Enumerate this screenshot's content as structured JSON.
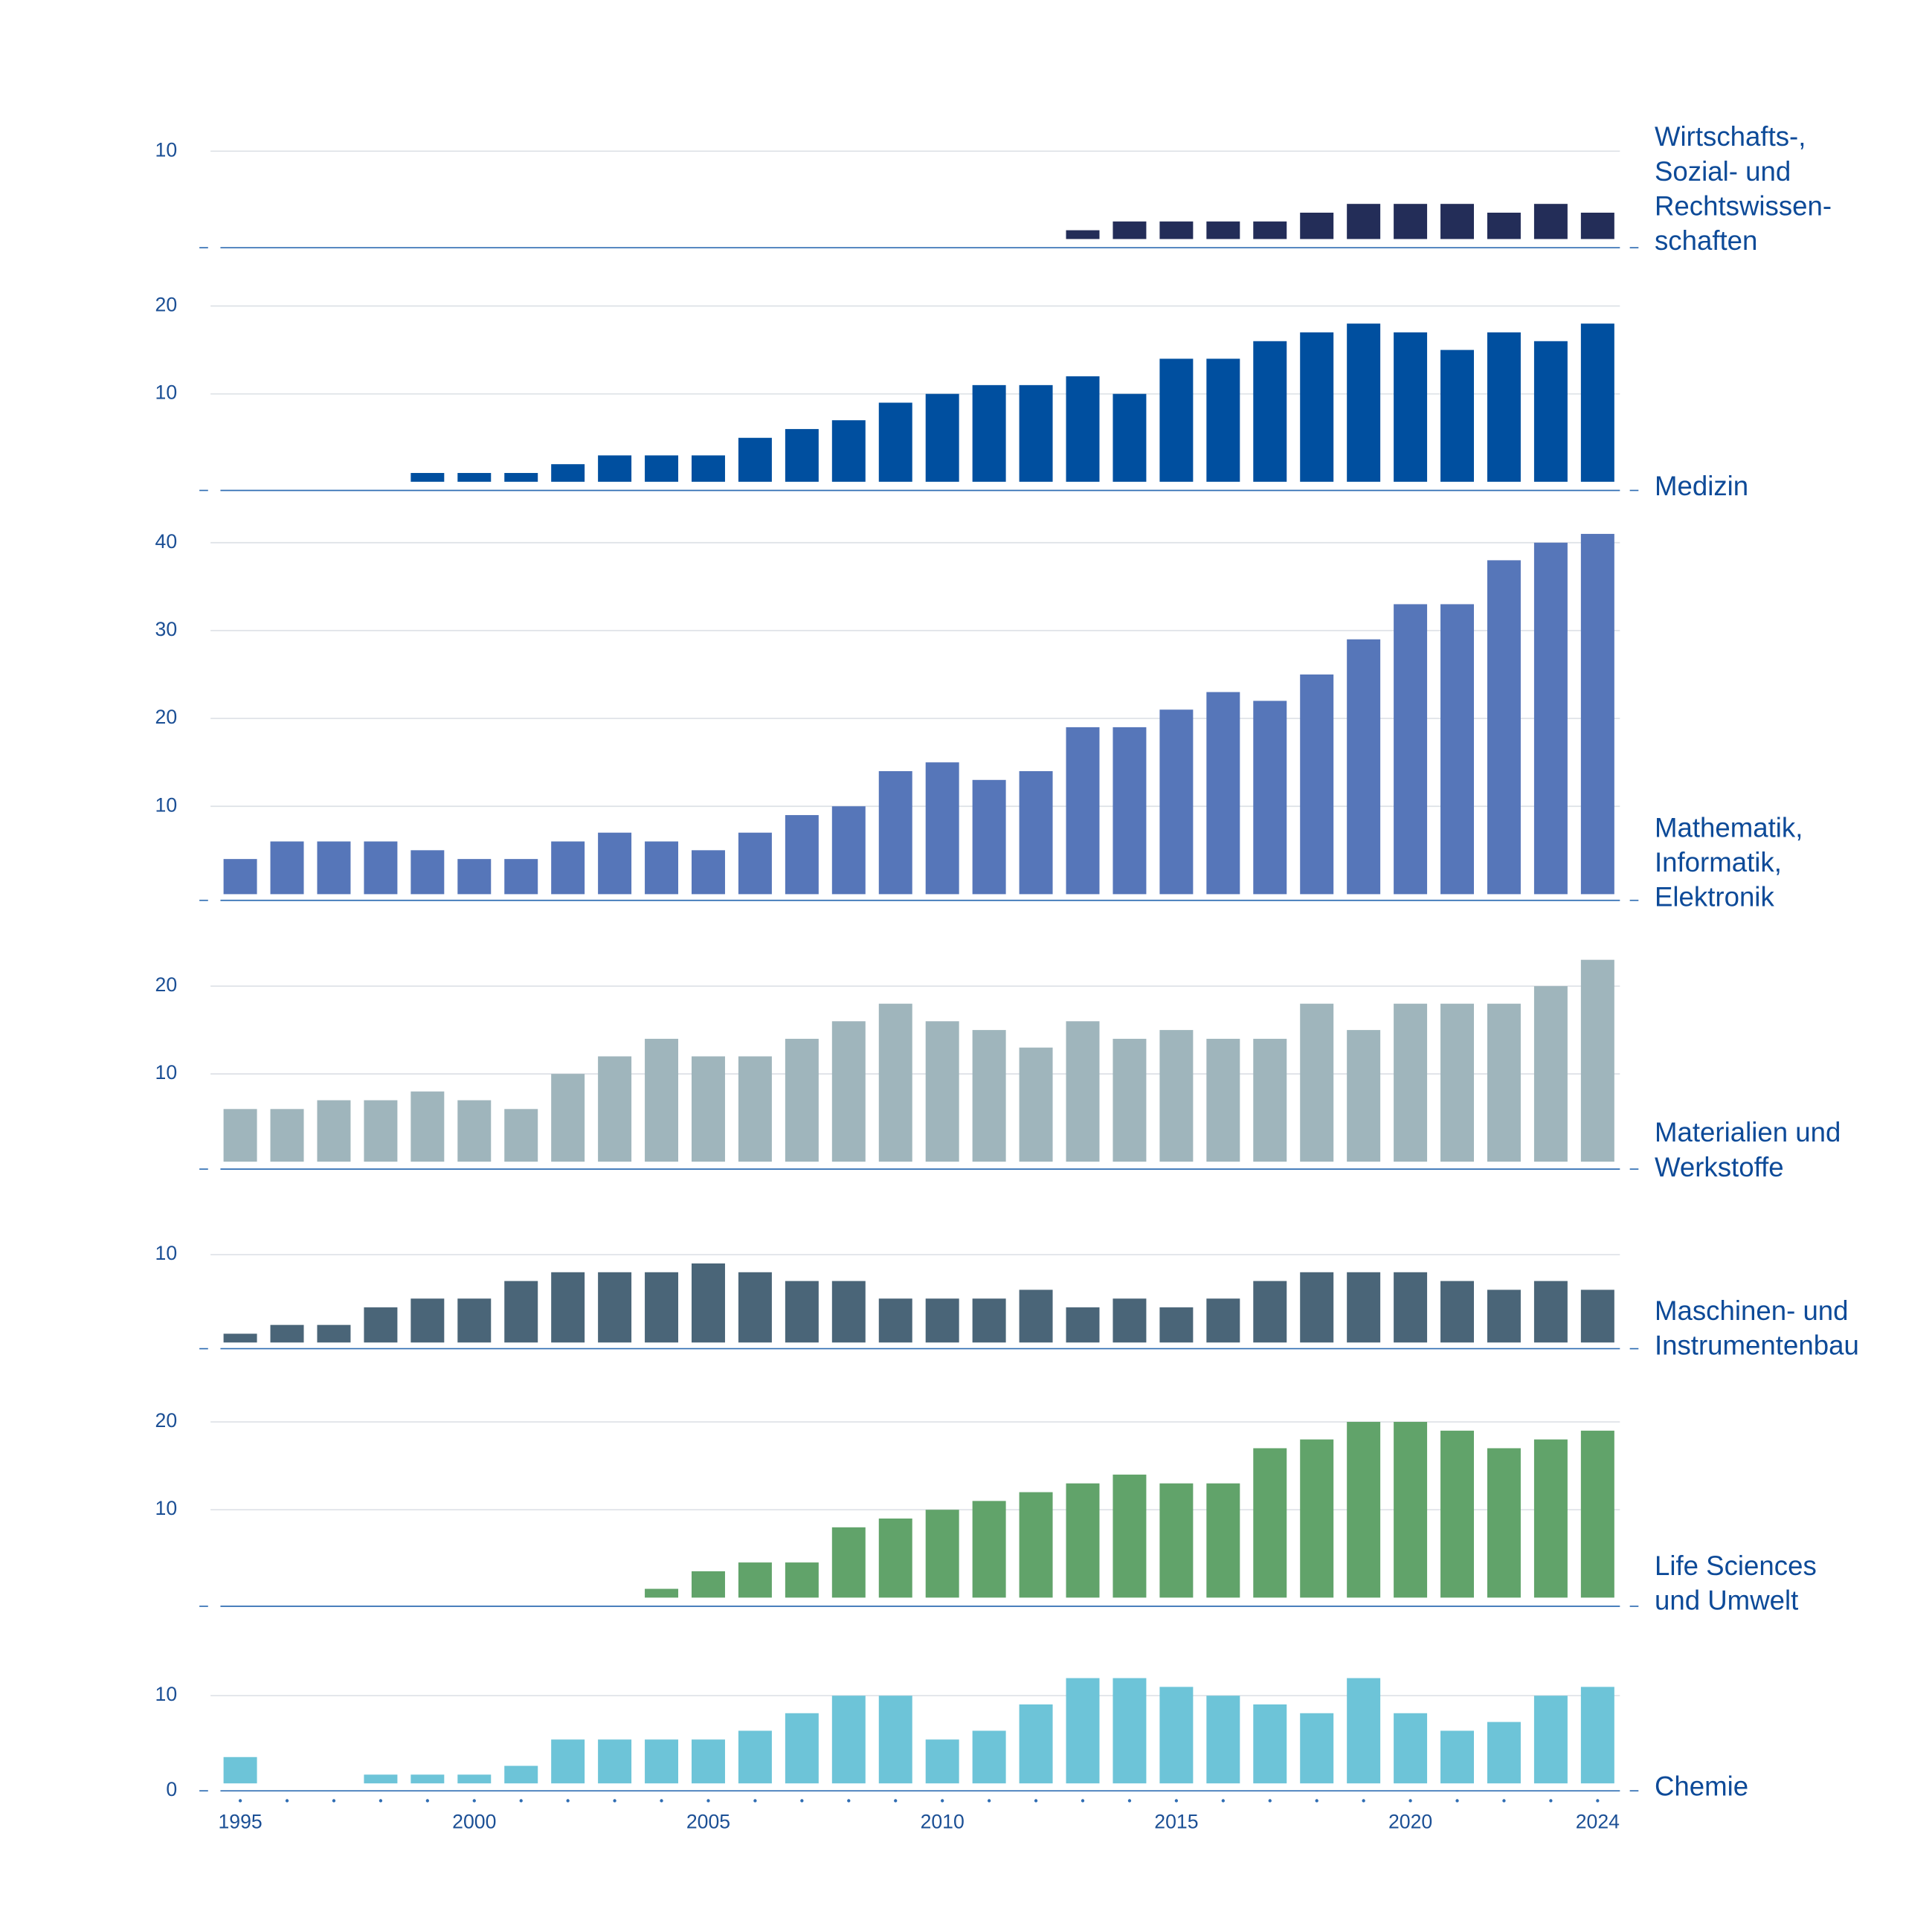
{
  "chart_data": [
    {
      "type": "bar",
      "title_lines": [
        "Wirtschafts-,",
        "Sozial- und",
        "Rechtswissen-",
        "schaften"
      ],
      "color": "#232d58",
      "x": [
        1995,
        1996,
        1997,
        1998,
        1999,
        2000,
        2001,
        2002,
        2003,
        2004,
        2005,
        2006,
        2007,
        2008,
        2009,
        2010,
        2011,
        2012,
        2013,
        2014,
        2015,
        2016,
        2017,
        2018,
        2019,
        2020,
        2021,
        2022,
        2023,
        2024
      ],
      "values": [
        0,
        0,
        0,
        0,
        0,
        0,
        0,
        0,
        0,
        0,
        0,
        0,
        0,
        0,
        0,
        0,
        0,
        0,
        1,
        2,
        2,
        2,
        2,
        3,
        4,
        4,
        4,
        3,
        4,
        3
      ],
      "ylim": [
        0,
        11
      ],
      "yticks": [
        10
      ],
      "grid": true
    },
    {
      "type": "bar",
      "title_lines": [
        "Medizin"
      ],
      "color": "#004f9f",
      "x": [
        1995,
        1996,
        1997,
        1998,
        1999,
        2000,
        2001,
        2002,
        2003,
        2004,
        2005,
        2006,
        2007,
        2008,
        2009,
        2010,
        2011,
        2012,
        2013,
        2014,
        2015,
        2016,
        2017,
        2018,
        2019,
        2020,
        2021,
        2022,
        2023,
        2024
      ],
      "values": [
        0,
        0,
        0,
        0,
        1,
        1,
        1,
        2,
        3,
        3,
        3,
        5,
        6,
        7,
        9,
        10,
        11,
        11,
        12,
        10,
        14,
        14,
        16,
        17,
        18,
        17,
        15,
        17,
        16,
        18
      ],
      "ylim": [
        0,
        21
      ],
      "yticks": [
        10,
        20
      ],
      "grid": true
    },
    {
      "type": "bar",
      "title_lines": [
        "Mathematik,",
        "Informatik,",
        "Elektronik"
      ],
      "color": "#5676b9",
      "x": [
        1995,
        1996,
        1997,
        1998,
        1999,
        2000,
        2001,
        2002,
        2003,
        2004,
        2005,
        2006,
        2007,
        2008,
        2009,
        2010,
        2011,
        2012,
        2013,
        2014,
        2015,
        2016,
        2017,
        2018,
        2019,
        2020,
        2021,
        2022,
        2023,
        2024
      ],
      "values": [
        4,
        6,
        6,
        6,
        5,
        4,
        4,
        6,
        7,
        6,
        5,
        7,
        9,
        10,
        14,
        15,
        13,
        14,
        19,
        19,
        21,
        23,
        22,
        25,
        29,
        33,
        33,
        38,
        40,
        41
      ],
      "ylim": [
        0,
        42
      ],
      "yticks": [
        10,
        20,
        30,
        40
      ],
      "grid": true
    },
    {
      "type": "bar",
      "title_lines": [
        "Materialien und",
        "Werkstoffe"
      ],
      "color": "#9fb5bc",
      "x": [
        1995,
        1996,
        1997,
        1998,
        1999,
        2000,
        2001,
        2002,
        2003,
        2004,
        2005,
        2006,
        2007,
        2008,
        2009,
        2010,
        2011,
        2012,
        2013,
        2014,
        2015,
        2016,
        2017,
        2018,
        2019,
        2020,
        2021,
        2022,
        2023,
        2024
      ],
      "values": [
        6,
        6,
        7,
        7,
        8,
        7,
        6,
        10,
        12,
        14,
        12,
        12,
        14,
        16,
        18,
        16,
        15,
        13,
        16,
        14,
        15,
        14,
        14,
        18,
        15,
        18,
        18,
        18,
        20,
        23
      ],
      "ylim": [
        0,
        23
      ],
      "yticks": [
        10,
        20
      ],
      "grid": true
    },
    {
      "type": "bar",
      "title_lines": [
        "Maschinen- und",
        "Instrumentenbau"
      ],
      "color": "#4a6578",
      "x": [
        1995,
        1996,
        1997,
        1998,
        1999,
        2000,
        2001,
        2002,
        2003,
        2004,
        2005,
        2006,
        2007,
        2008,
        2009,
        2010,
        2011,
        2012,
        2013,
        2014,
        2015,
        2016,
        2017,
        2018,
        2019,
        2020,
        2021,
        2022,
        2023,
        2024
      ],
      "values": [
        1,
        2,
        2,
        4,
        5,
        5,
        7,
        8,
        8,
        8,
        9,
        8,
        7,
        7,
        5,
        5,
        5,
        6,
        4,
        5,
        4,
        5,
        7,
        8,
        8,
        8,
        7,
        6,
        7,
        6
      ],
      "ylim": [
        0,
        11
      ],
      "yticks": [
        10
      ],
      "grid": true
    },
    {
      "type": "bar",
      "title_lines": [
        "Life Sciences",
        "und Umwelt"
      ],
      "color": "#61a36a",
      "x": [
        1995,
        1996,
        1997,
        1998,
        1999,
        2000,
        2001,
        2002,
        2003,
        2004,
        2005,
        2006,
        2007,
        2008,
        2009,
        2010,
        2011,
        2012,
        2013,
        2014,
        2015,
        2016,
        2017,
        2018,
        2019,
        2020,
        2021,
        2022,
        2023,
        2024
      ],
      "values": [
        0,
        0,
        0,
        0,
        0,
        0,
        0,
        0,
        0,
        1,
        3,
        4,
        4,
        8,
        9,
        10,
        11,
        12,
        13,
        14,
        13,
        13,
        17,
        18,
        20,
        20,
        19,
        17,
        18,
        19
      ],
      "ylim": [
        0,
        21
      ],
      "yticks": [
        10,
        20
      ],
      "grid": true
    },
    {
      "type": "bar",
      "title_lines": [
        "Chemie"
      ],
      "color": "#6dc4d8",
      "x": [
        1995,
        1996,
        1997,
        1998,
        1999,
        2000,
        2001,
        2002,
        2003,
        2004,
        2005,
        2006,
        2007,
        2008,
        2009,
        2010,
        2011,
        2012,
        2013,
        2014,
        2015,
        2016,
        2017,
        2018,
        2019,
        2020,
        2021,
        2022,
        2023,
        2024
      ],
      "values": [
        3,
        0,
        0,
        1,
        1,
        1,
        2,
        5,
        5,
        5,
        5,
        6,
        8,
        10,
        10,
        5,
        6,
        9,
        12,
        12,
        11,
        10,
        9,
        8,
        12,
        8,
        6,
        7,
        10,
        11
      ],
      "ylim": [
        0,
        12
      ],
      "yticks": [
        0,
        10
      ],
      "grid": true,
      "xticks": [
        1995,
        2000,
        2005,
        2010,
        2015,
        2020,
        2024
      ]
    }
  ]
}
